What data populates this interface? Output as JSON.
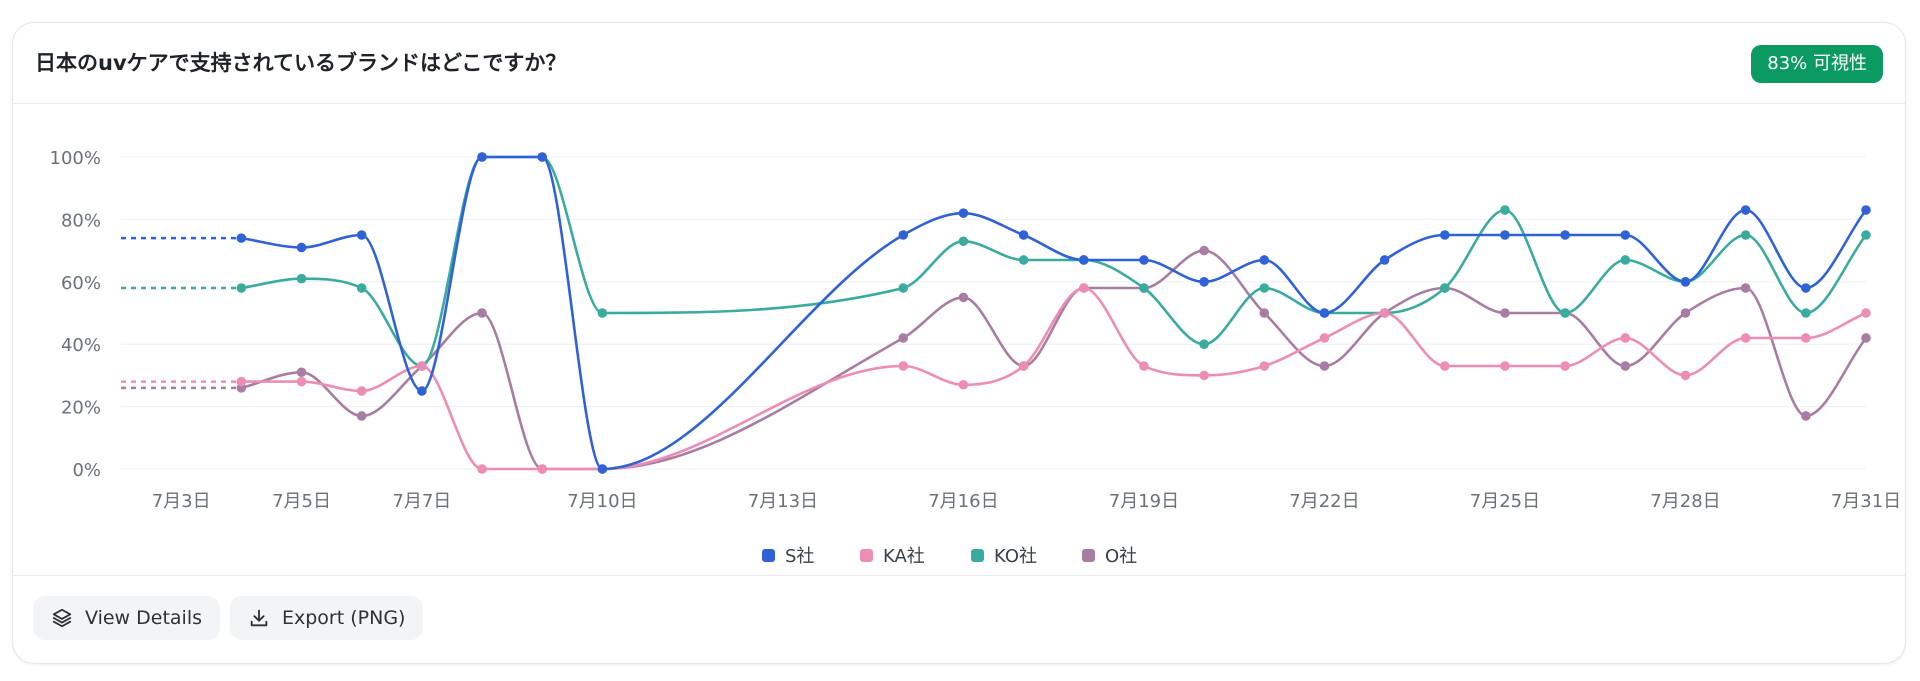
{
  "card": {
    "title": "日本のuvケアで支持されているブランドはどこですか？",
    "badge": "83% 可視性",
    "badge_color": "#0b9b62"
  },
  "footer": {
    "details_label": "View Details",
    "details_icon": "layers-icon",
    "export_label": "Export (PNG)",
    "export_icon": "download-icon"
  },
  "chart_data": {
    "type": "line",
    "x_axis": {
      "type": "date",
      "range": [
        "7月2日",
        "7月31日"
      ],
      "tick_labels": [
        "7月3日",
        "7月5日",
        "7月7日",
        "7月10日",
        "7月13日",
        "7月16日",
        "7月19日",
        "7月22日",
        "7月25日",
        "7月28日",
        "7月31日"
      ]
    },
    "y_axis": {
      "range": [
        0,
        100
      ],
      "ticks": [
        0,
        20,
        40,
        60,
        80,
        100
      ],
      "tick_labels": [
        "0%",
        "20%",
        "40%",
        "60%",
        "80%",
        "100%"
      ]
    },
    "grid": "horizontal",
    "legend": "bottom-center",
    "dashed_lead_in": "7月2日 to 7月4日 (level of first value)",
    "x": [
      "7月4日",
      "7月5日",
      "7月6日",
      "7月7日",
      "7月8日",
      "7月9日",
      "7月10日",
      "7月15日",
      "7月16日",
      "7月17日",
      "7月18日",
      "7月19日",
      "7月20日",
      "7月21日",
      "7月22日",
      "7月23日",
      "7月24日",
      "7月25日",
      "7月26日",
      "7月27日",
      "7月28日",
      "7月29日",
      "7月30日",
      "7月31日"
    ],
    "series": [
      {
        "name": "S社",
        "color": "#2f62d6",
        "values": [
          74,
          71,
          75,
          25,
          100,
          100,
          0,
          75,
          82,
          75,
          67,
          67,
          60,
          67,
          50,
          67,
          75,
          75,
          75,
          75,
          60,
          83,
          58,
          83
        ]
      },
      {
        "name": "KA社",
        "color": "#ee8db4",
        "values": [
          28,
          28,
          25,
          33,
          0,
          0,
          0,
          33,
          27,
          33,
          58,
          33,
          30,
          33,
          42,
          50,
          33,
          33,
          33,
          42,
          30,
          42,
          42,
          50
        ]
      },
      {
        "name": "KO社",
        "color": "#3aab9f",
        "values": [
          58,
          61,
          58,
          33,
          100,
          100,
          50,
          58,
          73,
          67,
          67,
          58,
          40,
          58,
          50,
          50,
          58,
          83,
          50,
          67,
          60,
          75,
          50,
          75
        ]
      },
      {
        "name": "O社",
        "color": "#a87da3",
        "values": [
          26,
          31,
          17,
          33,
          50,
          0,
          0,
          42,
          55,
          33,
          58,
          58,
          70,
          50,
          33,
          50,
          58,
          50,
          50,
          33,
          50,
          58,
          17,
          42
        ]
      }
    ]
  }
}
